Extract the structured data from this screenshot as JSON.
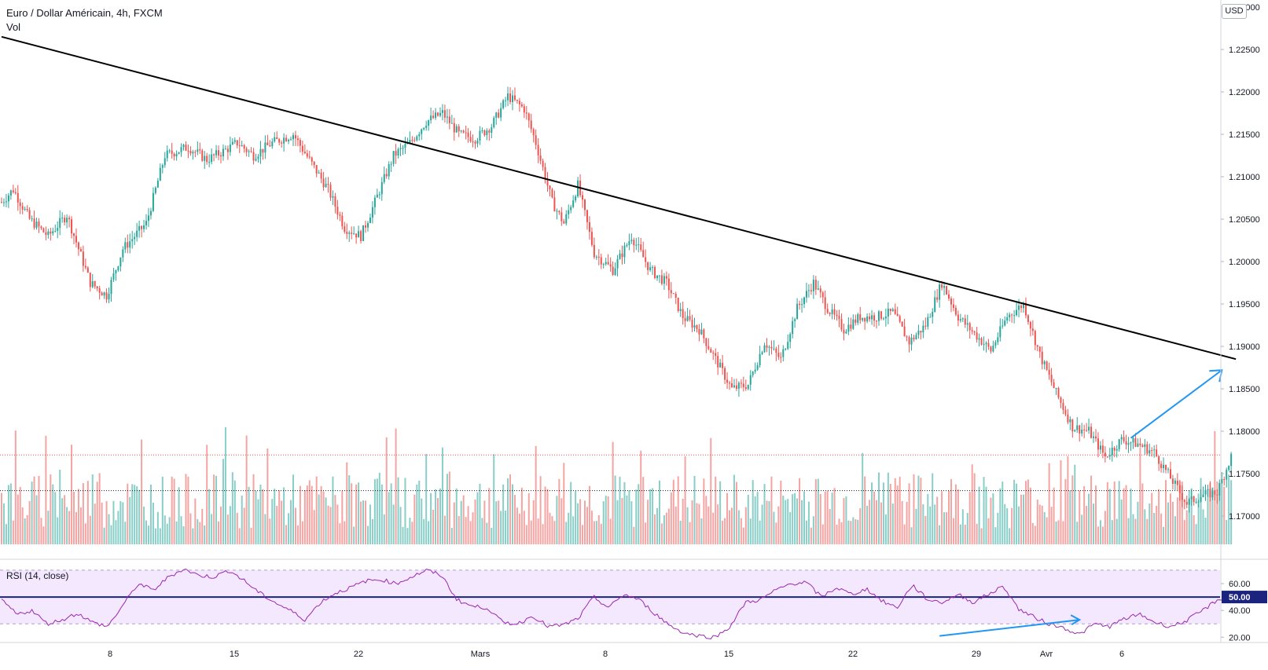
{
  "header": {
    "symbol": "Euro / Dollar Américain, 4h, FXCM",
    "volume_label": "Vol",
    "currency": "USD",
    "currency_top_tick_partial": "1.23000"
  },
  "rsi_panel": {
    "label": "RSI (14, close)",
    "current_value": "50.00",
    "ticks": [
      "60.00",
      "40.00",
      "20.00"
    ],
    "band_upper": 70,
    "band_lower": 30
  },
  "colors": {
    "up": "#26a69a",
    "down": "#ef5350",
    "up_volume": "#89cec7",
    "down_volume": "#f4a4a2",
    "trendline": "#000000",
    "arrow": "#2196f3",
    "rsi_line": "#9c27b0",
    "rsi_band": "#f3e8fd",
    "rsi_midline": "#1a237e"
  },
  "chart_data": {
    "type": "candlestick",
    "price_ticks": [
      "1.22500",
      "1.22000",
      "1.21500",
      "1.21000",
      "1.20500",
      "1.20000",
      "1.19500",
      "1.19000",
      "1.18500",
      "1.18000",
      "1.17500",
      "1.17000"
    ],
    "x_ticks": [
      "8",
      "15",
      "22",
      "Mars",
      "8",
      "15",
      "22",
      "29",
      "Avr",
      "6"
    ],
    "last_price_line": 1.1772,
    "prev_close_line": 1.173,
    "price_close_path": [
      [
        0,
        1.207
      ],
      [
        5,
        1.2085
      ],
      [
        12,
        1.205
      ],
      [
        20,
        1.203
      ],
      [
        28,
        1.2055
      ],
      [
        38,
        1.1975
      ],
      [
        45,
        1.196
      ],
      [
        52,
        1.2015
      ],
      [
        62,
        1.2045
      ],
      [
        70,
        1.2125
      ],
      [
        80,
        1.2135
      ],
      [
        88,
        1.212
      ],
      [
        95,
        1.213
      ],
      [
        101,
        1.214
      ],
      [
        108,
        1.2125
      ],
      [
        116,
        1.214
      ],
      [
        125,
        1.215
      ],
      [
        133,
        1.2115
      ],
      [
        140,
        1.2085
      ],
      [
        147,
        1.204
      ],
      [
        154,
        1.203
      ],
      [
        160,
        1.207
      ],
      [
        168,
        1.2125
      ],
      [
        175,
        1.214
      ],
      [
        182,
        1.2165
      ],
      [
        189,
        1.2175
      ],
      [
        196,
        1.215
      ],
      [
        203,
        1.2145
      ],
      [
        210,
        1.216
      ],
      [
        217,
        1.2195
      ],
      [
        224,
        1.218
      ],
      [
        229,
        1.214
      ],
      [
        236,
        1.207
      ],
      [
        241,
        1.2045
      ],
      [
        247,
        1.209
      ],
      [
        254,
        1.201
      ],
      [
        262,
        1.199
      ],
      [
        270,
        1.203
      ],
      [
        278,
        1.199
      ],
      [
        285,
        1.1975
      ],
      [
        292,
        1.1935
      ],
      [
        299,
        1.192
      ],
      [
        306,
        1.1885
      ],
      [
        313,
        1.185
      ],
      [
        320,
        1.1855
      ],
      [
        327,
        1.1905
      ],
      [
        334,
        1.1885
      ],
      [
        341,
        1.1945
      ],
      [
        348,
        1.1975
      ],
      [
        354,
        1.1945
      ],
      [
        361,
        1.192
      ],
      [
        368,
        1.1935
      ],
      [
        375,
        1.1935
      ],
      [
        382,
        1.194
      ],
      [
        389,
        1.1905
      ],
      [
        396,
        1.1925
      ],
      [
        403,
        1.1975
      ],
      [
        410,
        1.1935
      ],
      [
        417,
        1.1915
      ],
      [
        424,
        1.1895
      ],
      [
        431,
        1.1935
      ],
      [
        438,
        1.195
      ],
      [
        445,
        1.189
      ],
      [
        452,
        1.1845
      ],
      [
        459,
        1.1805
      ],
      [
        466,
        1.18
      ],
      [
        473,
        1.177
      ],
      [
        480,
        1.179
      ],
      [
        487,
        1.1785
      ],
      [
        494,
        1.1775
      ],
      [
        501,
        1.1745
      ],
      [
        508,
        1.1715
      ],
      [
        515,
        1.1725
      ],
      [
        521,
        1.1728
      ],
      [
        527,
        1.177
      ]
    ],
    "trendline": {
      "start": [
        0,
        1.2265
      ],
      "end": [
        527,
        1.1885
      ]
    },
    "arrow": {
      "start": [
        484,
        1.1792
      ],
      "end": [
        523,
        1.1872
      ]
    },
    "rsi": [
      48,
      37,
      40,
      30,
      33,
      38,
      31,
      28,
      44,
      60,
      55,
      65,
      71,
      66,
      65,
      70,
      62,
      53,
      46,
      40,
      33,
      46,
      53,
      57,
      62,
      63,
      60,
      65,
      70,
      66,
      48,
      43,
      42,
      31,
      30,
      36,
      28,
      29,
      34,
      50,
      42,
      52,
      48,
      38,
      29,
      23,
      21,
      20,
      28,
      46,
      48,
      55,
      60,
      61,
      50,
      57,
      52,
      56,
      47,
      42,
      59,
      48,
      46,
      52,
      46,
      52,
      58,
      41,
      35,
      30,
      27,
      22,
      30,
      28,
      34,
      37,
      31,
      28,
      32,
      39,
      47,
      52
    ],
    "rsi_divergence_arrow": {
      "start": [
        402,
        21
      ],
      "end": [
        462,
        33
      ]
    },
    "volume_levels_note": "relative bar heights shown at bottom of price pane"
  }
}
